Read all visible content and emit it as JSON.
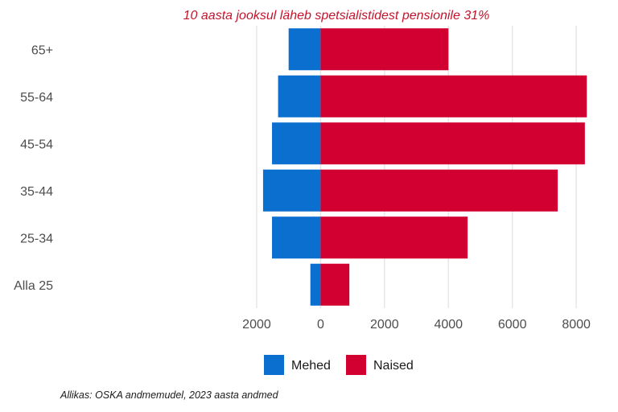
{
  "chart_data": {
    "type": "bar",
    "orientation": "horizontal",
    "layout": "population-pyramid",
    "title": "10 aasta jooksul läheb spetsialistidest pensionile 31%",
    "title_color": "#c4142c",
    "categories": [
      "65+",
      "55-64",
      "45-54",
      "35-44",
      "25-34",
      "Alla 25"
    ],
    "series": [
      {
        "name": "Mehed",
        "color": "#0a6fcf",
        "values": [
          -1000,
          -1330,
          -1520,
          -1800,
          -1520,
          -320
        ]
      },
      {
        "name": "Naised",
        "color": "#d10031",
        "values": [
          4000,
          8330,
          8270,
          7420,
          4600,
          900
        ]
      }
    ],
    "xlim": [
      -2100,
      8400
    ],
    "xticks": [
      -2000,
      0,
      2000,
      4000,
      6000,
      8000
    ],
    "xtick_labels": [
      "2000",
      "0",
      "2000",
      "4000",
      "6000",
      "8000"
    ],
    "grid": true,
    "legend_position": "bottom",
    "source": "Allikas: OSKA andmemudel, 2023 aasta andmed"
  }
}
